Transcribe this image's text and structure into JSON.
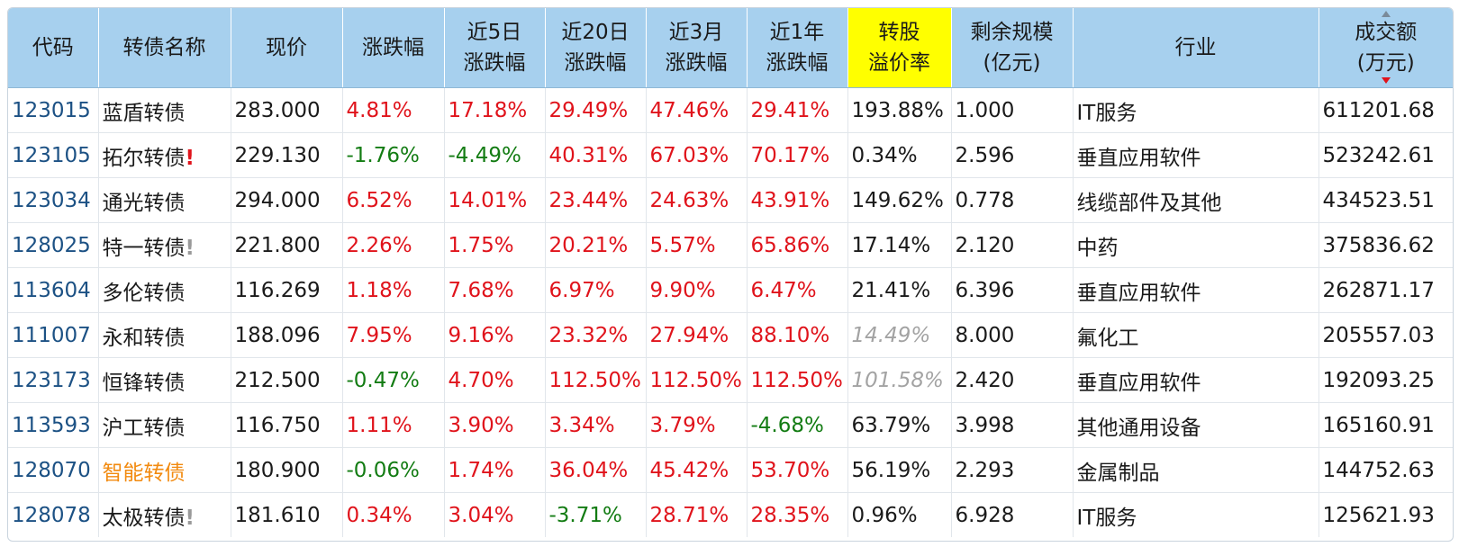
{
  "headers": [
    {
      "lines": [
        "代码"
      ]
    },
    {
      "lines": [
        "转债名称"
      ]
    },
    {
      "lines": [
        "现价"
      ]
    },
    {
      "lines": [
        "涨跌幅"
      ]
    },
    {
      "lines": [
        "近5日",
        "涨跌幅"
      ]
    },
    {
      "lines": [
        "近20日",
        "涨跌幅"
      ]
    },
    {
      "lines": [
        "近3月",
        "涨跌幅"
      ]
    },
    {
      "lines": [
        "近1年",
        "涨跌幅"
      ]
    },
    {
      "lines": [
        "转股",
        "溢价率"
      ]
    },
    {
      "lines": [
        "剩余规模",
        "(亿元)"
      ]
    },
    {
      "lines": [
        "行业"
      ]
    },
    {
      "lines": [
        "成交额",
        "(万元)"
      ]
    }
  ],
  "colors": {
    "header_bg": "#a7d0ee",
    "highlight_header_bg": "#ffff00",
    "up": "#e0131b",
    "down": "#137c13",
    "code": "#1c5184",
    "special_name": "#f28a0f",
    "muted": "#a3a3a3"
  },
  "rows": [
    {
      "code": "123015",
      "name": "蓝盾转债",
      "name_style": "normal",
      "flag": "",
      "price": "283.000",
      "chg": "4.81%",
      "chg_c": "red",
      "chg5": "17.18%",
      "chg5_c": "red",
      "chg20": "29.49%",
      "chg20_c": "red",
      "chg3m": "47.46%",
      "chg3m_c": "red",
      "chg1y": "29.41%",
      "chg1y_c": "red",
      "premium": "193.88%",
      "premium_c": "normal",
      "remain": "1.000",
      "industry": "IT服务",
      "volume": "611201.68"
    },
    {
      "code": "123105",
      "name": "拓尔转债",
      "name_style": "normal",
      "flag": "!",
      "flag_style": "red",
      "price": "229.130",
      "chg": "-1.76%",
      "chg_c": "green",
      "chg5": "-4.49%",
      "chg5_c": "green",
      "chg20": "40.31%",
      "chg20_c": "red",
      "chg3m": "67.03%",
      "chg3m_c": "red",
      "chg1y": "70.17%",
      "chg1y_c": "red",
      "premium": "0.34%",
      "premium_c": "normal",
      "remain": "2.596",
      "industry": "垂直应用软件",
      "volume": "523242.61"
    },
    {
      "code": "123034",
      "name": "通光转债",
      "name_style": "normal",
      "flag": "",
      "price": "294.000",
      "chg": "6.52%",
      "chg_c": "red",
      "chg5": "14.01%",
      "chg5_c": "red",
      "chg20": "23.44%",
      "chg20_c": "red",
      "chg3m": "24.63%",
      "chg3m_c": "red",
      "chg1y": "43.91%",
      "chg1y_c": "red",
      "premium": "149.62%",
      "premium_c": "normal",
      "remain": "0.778",
      "industry": "线缆部件及其他",
      "volume": "434523.51"
    },
    {
      "code": "128025",
      "name": "特一转债",
      "name_style": "normal",
      "flag": "!",
      "flag_style": "gray",
      "price": "221.800",
      "chg": "2.26%",
      "chg_c": "red",
      "chg5": "1.75%",
      "chg5_c": "red",
      "chg20": "20.21%",
      "chg20_c": "red",
      "chg3m": "5.57%",
      "chg3m_c": "red",
      "chg1y": "65.86%",
      "chg1y_c": "red",
      "premium": "17.14%",
      "premium_c": "normal",
      "remain": "2.120",
      "industry": "中药",
      "volume": "375836.62"
    },
    {
      "code": "113604",
      "name": "多伦转债",
      "name_style": "normal",
      "flag": "",
      "price": "116.269",
      "chg": "1.18%",
      "chg_c": "red",
      "chg5": "7.68%",
      "chg5_c": "red",
      "chg20": "6.97%",
      "chg20_c": "red",
      "chg3m": "9.90%",
      "chg3m_c": "red",
      "chg1y": "6.47%",
      "chg1y_c": "red",
      "premium": "21.41%",
      "premium_c": "normal",
      "remain": "6.396",
      "industry": "垂直应用软件",
      "volume": "262871.17"
    },
    {
      "code": "111007",
      "name": "永和转债",
      "name_style": "normal",
      "flag": "",
      "price": "188.096",
      "chg": "7.95%",
      "chg_c": "red",
      "chg5": "9.16%",
      "chg5_c": "red",
      "chg20": "23.32%",
      "chg20_c": "red",
      "chg3m": "27.94%",
      "chg3m_c": "red",
      "chg1y": "88.10%",
      "chg1y_c": "red",
      "premium": "14.49%",
      "premium_c": "muted",
      "remain": "8.000",
      "industry": "氟化工",
      "volume": "205557.03"
    },
    {
      "code": "123173",
      "name": "恒锋转债",
      "name_style": "normal",
      "flag": "",
      "price": "212.500",
      "chg": "-0.47%",
      "chg_c": "green",
      "chg5": "4.70%",
      "chg5_c": "red",
      "chg20": "112.50%",
      "chg20_c": "red",
      "chg3m": "112.50%",
      "chg3m_c": "red",
      "chg1y": "112.50%",
      "chg1y_c": "red",
      "premium": "101.58%",
      "premium_c": "muted",
      "remain": "2.420",
      "industry": "垂直应用软件",
      "volume": "192093.25"
    },
    {
      "code": "113593",
      "name": "沪工转债",
      "name_style": "normal",
      "flag": "",
      "price": "116.750",
      "chg": "1.11%",
      "chg_c": "red",
      "chg5": "3.90%",
      "chg5_c": "red",
      "chg20": "3.34%",
      "chg20_c": "red",
      "chg3m": "3.79%",
      "chg3m_c": "red",
      "chg1y": "-4.68%",
      "chg1y_c": "green",
      "premium": "63.79%",
      "premium_c": "normal",
      "remain": "3.998",
      "industry": "其他通用设备",
      "volume": "165160.91"
    },
    {
      "code": "128070",
      "name": "智能转债",
      "name_style": "orange",
      "flag": "",
      "price": "180.900",
      "chg": "-0.06%",
      "chg_c": "green",
      "chg5": "1.74%",
      "chg5_c": "red",
      "chg20": "36.04%",
      "chg20_c": "red",
      "chg3m": "45.42%",
      "chg3m_c": "red",
      "chg1y": "53.70%",
      "chg1y_c": "red",
      "premium": "56.19%",
      "premium_c": "normal",
      "remain": "2.293",
      "industry": "金属制品",
      "volume": "144752.63"
    },
    {
      "code": "128078",
      "name": "太极转债",
      "name_style": "normal",
      "flag": "!",
      "flag_style": "gray",
      "price": "181.610",
      "chg": "0.34%",
      "chg_c": "red",
      "chg5": "3.04%",
      "chg5_c": "red",
      "chg20": "-3.71%",
      "chg20_c": "green",
      "chg3m": "28.71%",
      "chg3m_c": "red",
      "chg1y": "28.35%",
      "chg1y_c": "red",
      "premium": "0.96%",
      "premium_c": "normal",
      "remain": "6.928",
      "industry": "IT服务",
      "volume": "125621.93"
    }
  ]
}
